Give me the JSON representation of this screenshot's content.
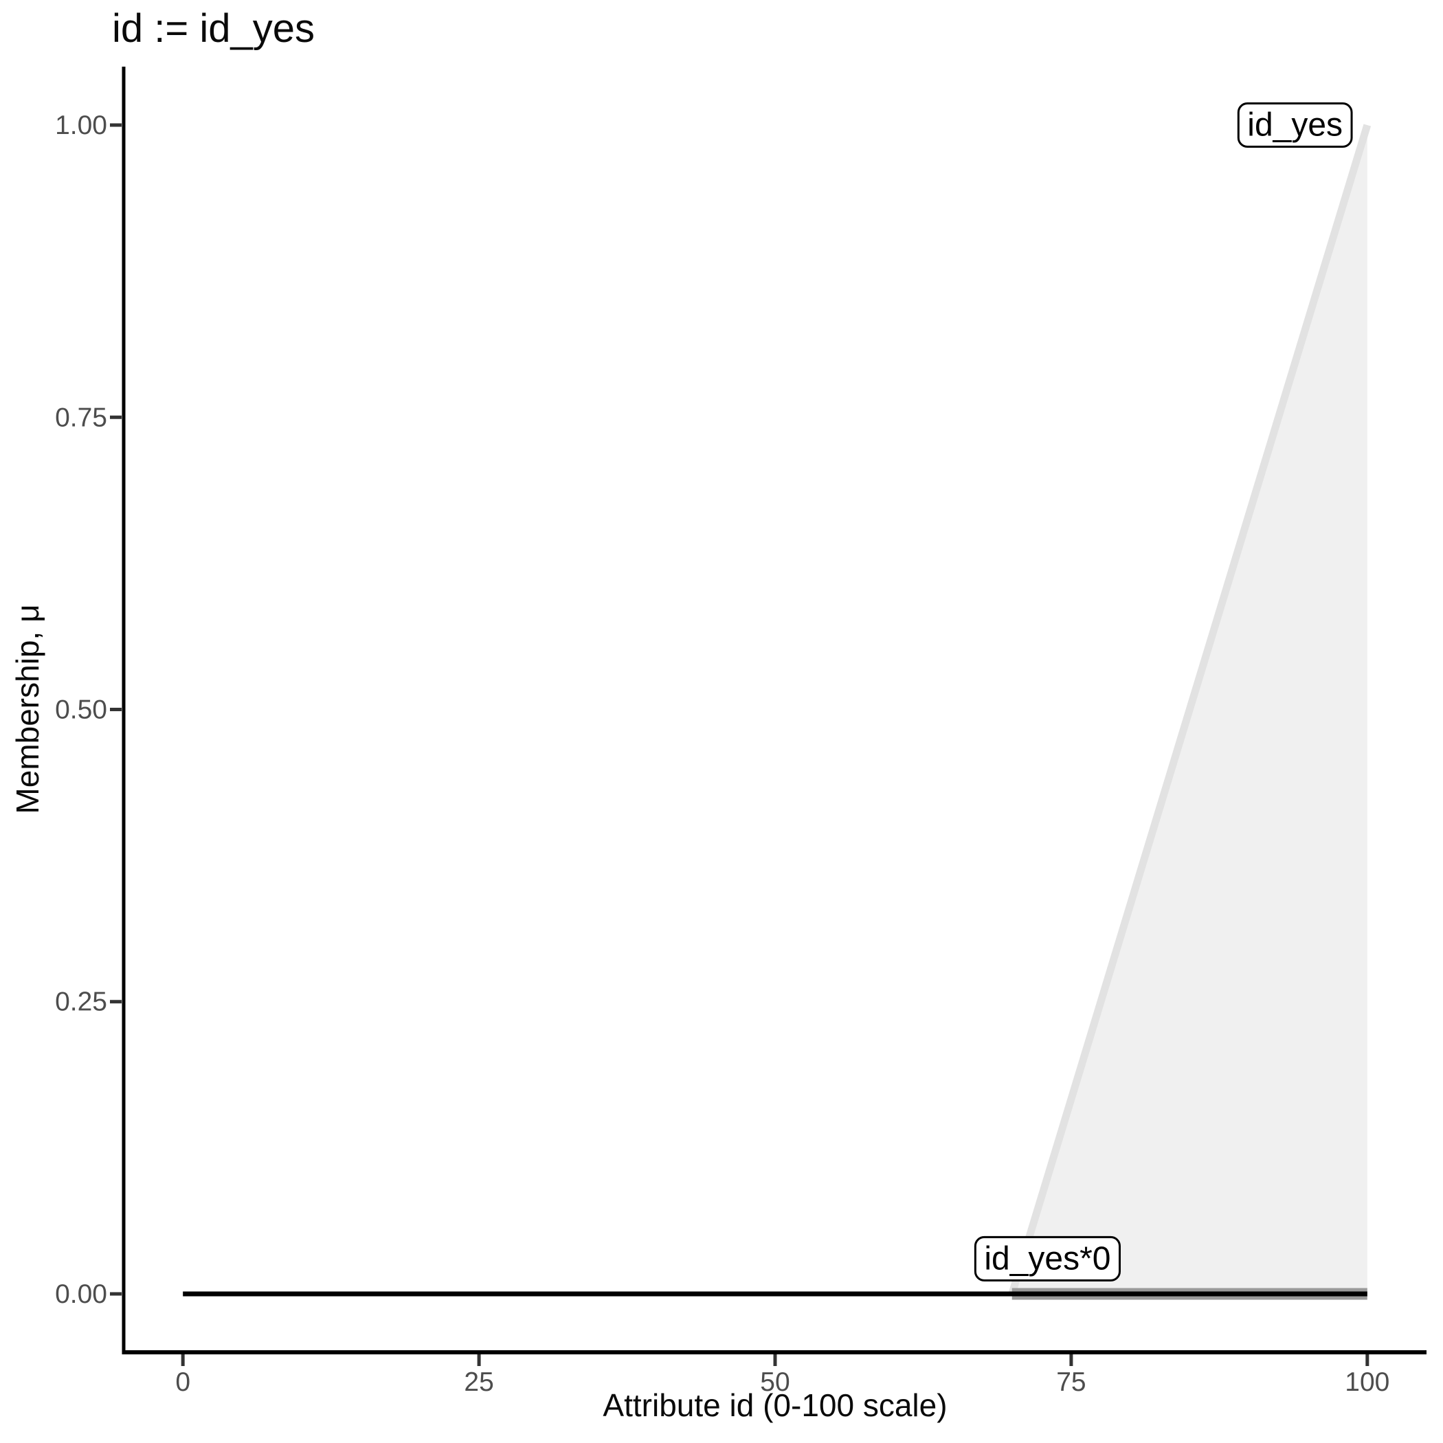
{
  "title": "id := id_yes",
  "colors": {
    "background": "#FFFFFF",
    "axis_line": "#000000",
    "tick_mark": "#333333",
    "tick_label": "#4D4D4D",
    "title_text": "#0A0A0A",
    "membership_line": "#E2E2E2",
    "membership_fill": "#F0F0F0",
    "support_line": "#9A9A9A",
    "zero_line": "#000000",
    "label_box_fill": "#FFFFFF",
    "label_box_border": "#000000"
  },
  "chart_data": {
    "type": "area",
    "title": "id := id_yes",
    "xlabel": "Attribute id (0-100 scale)",
    "ylabel": "Membership, μ",
    "xlim": [
      0,
      100
    ],
    "ylim": [
      0,
      1
    ],
    "expand_mult": 0.05,
    "grid": false,
    "legend": "none",
    "xticks": {
      "values": [
        0,
        25,
        50,
        75,
        100
      ],
      "labels": [
        "0",
        "25",
        "50",
        "75",
        "100"
      ]
    },
    "yticks": {
      "values": [
        0,
        0.25,
        0.5,
        0.75,
        1
      ],
      "labels": [
        "0.00",
        "0.25",
        "0.50",
        "0.75",
        "1.00"
      ]
    },
    "series": [
      {
        "name": "id_yes",
        "kind": "area",
        "description": "fuzzy membership ramp, mu=0 at id=70 rising linearly to mu=1 at id=100",
        "points": [
          [
            70,
            0
          ],
          [
            100,
            1
          ]
        ],
        "baseline": 0,
        "close_at_x": 100,
        "line_color": "#E2E2E2",
        "fill_color": "#F0F0F0",
        "line_width": 11
      },
      {
        "name": "id_yes support",
        "kind": "line",
        "description": "thick gray segment at mu=0 over support of id_yes (70 to 100)",
        "points": [
          [
            70,
            0
          ],
          [
            100,
            0
          ]
        ],
        "line_color": "#9A9A9A",
        "line_width": 17
      },
      {
        "name": "id_yes*0",
        "kind": "line",
        "description": "id_yes scaled by 0: constant mu=0 over whole domain",
        "points": [
          [
            0,
            0
          ],
          [
            100,
            0
          ]
        ],
        "line_color": "#000000",
        "line_width": 7
      }
    ],
    "annotations": [
      {
        "text": "id_yes",
        "x": 93.9,
        "y": 1.0
      },
      {
        "text": "id_yes*0",
        "x": 73.0,
        "y": 0.03
      }
    ]
  }
}
